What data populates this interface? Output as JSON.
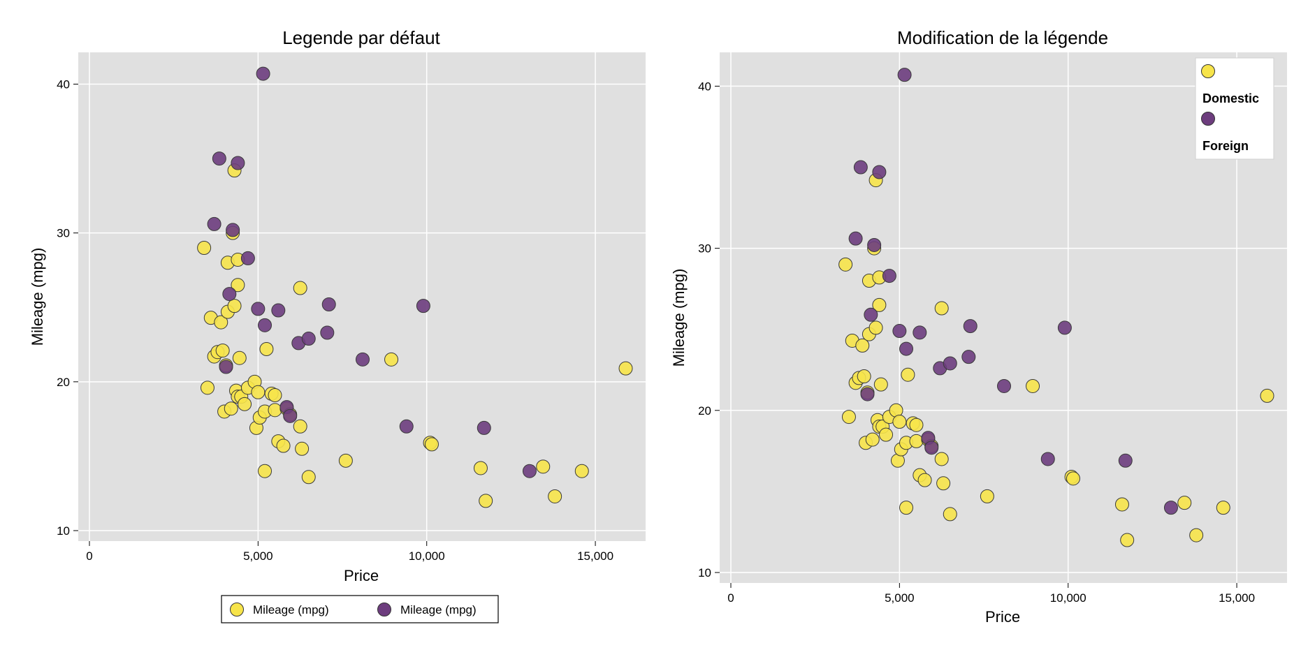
{
  "chart_data": [
    {
      "type": "scatter",
      "title": "Legende par défaut",
      "xlabel": "Price",
      "ylabel": "Mileage (mpg)",
      "xlim": [
        0,
        16200
      ],
      "ylim": [
        9.5,
        41.5
      ],
      "xticks": [
        0,
        5000,
        10000,
        15000
      ],
      "xtick_labels": [
        "0",
        "5,000",
        "10,000",
        "15,000"
      ],
      "yticks": [
        10,
        20,
        30,
        40
      ],
      "ytick_labels": [
        "10",
        "20",
        "30",
        "40"
      ],
      "grid": true,
      "legend_position": "bottom",
      "legend": [
        "Mileage (mpg)",
        "Mileage (mpg)"
      ],
      "series": [
        {
          "color": "#f7e44a",
          "points": [
            [
              3400,
              29
            ],
            [
              3500,
              19.6
            ],
            [
              3600,
              24.3
            ],
            [
              3700,
              21.7
            ],
            [
              3800,
              22
            ],
            [
              3900,
              24
            ],
            [
              3950,
              22.1
            ],
            [
              4000,
              18
            ],
            [
              4050,
              21.1
            ],
            [
              4100,
              28
            ],
            [
              4100,
              24.7
            ],
            [
              4200,
              18.2
            ],
            [
              4250,
              30
            ],
            [
              4300,
              34.2
            ],
            [
              4300,
              25.1
            ],
            [
              4350,
              19.4
            ],
            [
              4400,
              28.2
            ],
            [
              4400,
              26.5
            ],
            [
              4400,
              19
            ],
            [
              4450,
              21.6
            ],
            [
              4500,
              19
            ],
            [
              4600,
              18.5
            ],
            [
              4700,
              19.6
            ],
            [
              4900,
              20
            ],
            [
              4950,
              16.9
            ],
            [
              5000,
              19.3
            ],
            [
              5050,
              17.6
            ],
            [
              5200,
              18
            ],
            [
              5200,
              14
            ],
            [
              5250,
              22.2
            ],
            [
              5400,
              19.2
            ],
            [
              5500,
              19.1
            ],
            [
              5500,
              18.1
            ],
            [
              5600,
              16
            ],
            [
              5750,
              15.7
            ],
            [
              5850,
              18.2
            ],
            [
              5950,
              17.8
            ],
            [
              6250,
              17
            ],
            [
              6250,
              26.3
            ],
            [
              6300,
              15.5
            ],
            [
              6500,
              13.6
            ],
            [
              7600,
              14.7
            ],
            [
              8950,
              21.5
            ],
            [
              10100,
              15.9
            ],
            [
              10150,
              15.8
            ],
            [
              11600,
              14.2
            ],
            [
              11750,
              12
            ],
            [
              13450,
              14.3
            ],
            [
              13800,
              12.3
            ],
            [
              14600,
              14
            ],
            [
              15900,
              20.9
            ]
          ]
        },
        {
          "color": "#6d3d7e",
          "points": [
            [
              3700,
              30.6
            ],
            [
              3850,
              35
            ],
            [
              4050,
              21
            ],
            [
              4150,
              25.9
            ],
            [
              4250,
              30.2
            ],
            [
              4400,
              34.7
            ],
            [
              4700,
              28.3
            ],
            [
              5000,
              24.9
            ],
            [
              5150,
              40.7
            ],
            [
              5200,
              23.8
            ],
            [
              5600,
              24.8
            ],
            [
              5850,
              18.3
            ],
            [
              5950,
              17.7
            ],
            [
              6200,
              22.6
            ],
            [
              6500,
              22.9
            ],
            [
              7050,
              23.3
            ],
            [
              7100,
              25.2
            ],
            [
              8100,
              21.5
            ],
            [
              9400,
              17
            ],
            [
              9900,
              25.1
            ],
            [
              11700,
              16.9
            ],
            [
              13050,
              14
            ]
          ]
        }
      ]
    },
    {
      "type": "scatter",
      "title": "Modification de la légende",
      "xlabel": "Price",
      "ylabel": "Mileage (mpg)",
      "xlim": [
        0,
        16200
      ],
      "ylim": [
        9.5,
        41.5
      ],
      "xticks": [
        0,
        5000,
        10000,
        15000
      ],
      "xtick_labels": [
        "0",
        "5,000",
        "10,000",
        "15,000"
      ],
      "yticks": [
        10,
        20,
        30,
        40
      ],
      "ytick_labels": [
        "10",
        "20",
        "30",
        "40"
      ],
      "grid": true,
      "legend_position": "top-right",
      "legend": [
        "Domestic",
        "Foreign"
      ],
      "series": [
        {
          "color": "#f7e44a",
          "points": [
            [
              3400,
              29
            ],
            [
              3500,
              19.6
            ],
            [
              3600,
              24.3
            ],
            [
              3700,
              21.7
            ],
            [
              3800,
              22
            ],
            [
              3900,
              24
            ],
            [
              3950,
              22.1
            ],
            [
              4000,
              18
            ],
            [
              4050,
              21.1
            ],
            [
              4100,
              28
            ],
            [
              4100,
              24.7
            ],
            [
              4200,
              18.2
            ],
            [
              4250,
              30
            ],
            [
              4300,
              34.2
            ],
            [
              4300,
              25.1
            ],
            [
              4350,
              19.4
            ],
            [
              4400,
              28.2
            ],
            [
              4400,
              26.5
            ],
            [
              4400,
              19
            ],
            [
              4450,
              21.6
            ],
            [
              4500,
              19
            ],
            [
              4600,
              18.5
            ],
            [
              4700,
              19.6
            ],
            [
              4900,
              20
            ],
            [
              4950,
              16.9
            ],
            [
              5000,
              19.3
            ],
            [
              5050,
              17.6
            ],
            [
              5200,
              18
            ],
            [
              5200,
              14
            ],
            [
              5250,
              22.2
            ],
            [
              5400,
              19.2
            ],
            [
              5500,
              19.1
            ],
            [
              5500,
              18.1
            ],
            [
              5600,
              16
            ],
            [
              5750,
              15.7
            ],
            [
              5850,
              18.2
            ],
            [
              5950,
              17.8
            ],
            [
              6250,
              17
            ],
            [
              6250,
              26.3
            ],
            [
              6300,
              15.5
            ],
            [
              6500,
              13.6
            ],
            [
              7600,
              14.7
            ],
            [
              8950,
              21.5
            ],
            [
              10100,
              15.9
            ],
            [
              10150,
              15.8
            ],
            [
              11600,
              14.2
            ],
            [
              11750,
              12
            ],
            [
              13450,
              14.3
            ],
            [
              13800,
              12.3
            ],
            [
              14600,
              14
            ],
            [
              15900,
              20.9
            ]
          ]
        },
        {
          "color": "#6d3d7e",
          "points": [
            [
              3700,
              30.6
            ],
            [
              3850,
              35
            ],
            [
              4050,
              21
            ],
            [
              4150,
              25.9
            ],
            [
              4250,
              30.2
            ],
            [
              4400,
              34.7
            ],
            [
              4700,
              28.3
            ],
            [
              5000,
              24.9
            ],
            [
              5150,
              40.7
            ],
            [
              5200,
              23.8
            ],
            [
              5600,
              24.8
            ],
            [
              5850,
              18.3
            ],
            [
              5950,
              17.7
            ],
            [
              6200,
              22.6
            ],
            [
              6500,
              22.9
            ],
            [
              7050,
              23.3
            ],
            [
              7100,
              25.2
            ],
            [
              8100,
              21.5
            ],
            [
              9400,
              17
            ],
            [
              9900,
              25.1
            ],
            [
              11700,
              16.9
            ],
            [
              13050,
              14
            ]
          ]
        }
      ]
    }
  ]
}
